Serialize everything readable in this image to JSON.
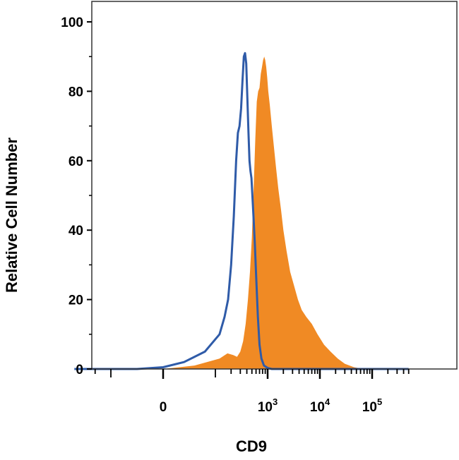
{
  "chart_data": {
    "type": "area",
    "title": "",
    "xlabel": "CD9",
    "ylabel": "Relative Cell Number",
    "x_scale": "biexponential",
    "ylim": [
      0,
      100
    ],
    "xlim": [
      -500,
      500000
    ],
    "y_ticks": [
      {
        "value": 0,
        "label": "0"
      },
      {
        "value": 20,
        "label": "20"
      },
      {
        "value": 40,
        "label": "40"
      },
      {
        "value": 60,
        "label": "60"
      },
      {
        "value": 80,
        "label": "80"
      },
      {
        "value": 100,
        "label": "100"
      }
    ],
    "x_ticks": [
      {
        "value": 0,
        "base": "0",
        "exp": ""
      },
      {
        "value": 1000,
        "base": "10",
        "exp": "3"
      },
      {
        "value": 10000,
        "base": "10",
        "exp": "4"
      },
      {
        "value": 100000,
        "base": "10",
        "exp": "5"
      }
    ],
    "grid": false,
    "series": [
      {
        "color": "#f08a24",
        "style": "filled",
        "points": [
          [
            -50,
            0
          ],
          [
            0,
            0
          ],
          [
            60,
            1
          ],
          [
            120,
            3
          ],
          [
            170,
            4.5
          ],
          [
            220,
            4
          ],
          [
            260,
            3.5
          ],
          [
            300,
            5
          ],
          [
            340,
            8
          ],
          [
            380,
            13
          ],
          [
            420,
            20
          ],
          [
            460,
            28
          ],
          [
            500,
            38
          ],
          [
            540,
            52
          ],
          [
            580,
            66
          ],
          [
            620,
            77
          ],
          [
            660,
            80
          ],
          [
            700,
            81
          ],
          [
            740,
            85
          ],
          [
            780,
            87
          ],
          [
            820,
            89
          ],
          [
            860,
            90
          ],
          [
            900,
            89
          ],
          [
            940,
            87
          ],
          [
            980,
            84
          ],
          [
            1030,
            80
          ],
          [
            1100,
            76
          ],
          [
            1200,
            70
          ],
          [
            1300,
            65
          ],
          [
            1450,
            58
          ],
          [
            1600,
            52
          ],
          [
            1800,
            46
          ],
          [
            2000,
            40
          ],
          [
            2300,
            34
          ],
          [
            2700,
            28
          ],
          [
            3200,
            24
          ],
          [
            3800,
            20
          ],
          [
            4500,
            17
          ],
          [
            5500,
            15
          ],
          [
            7000,
            13
          ],
          [
            9000,
            10
          ],
          [
            12000,
            7
          ],
          [
            16000,
            5
          ],
          [
            22000,
            3
          ],
          [
            30000,
            1.5
          ],
          [
            45000,
            0.5
          ],
          [
            70000,
            0
          ]
        ]
      },
      {
        "color": "#2f5ba8",
        "style": "line",
        "points": [
          [
            -500,
            0
          ],
          [
            -150,
            0
          ],
          [
            -50,
            0
          ],
          [
            0,
            0.5
          ],
          [
            40,
            2
          ],
          [
            80,
            5
          ],
          [
            120,
            10
          ],
          [
            150,
            15
          ],
          [
            175,
            20
          ],
          [
            200,
            30
          ],
          [
            225,
            44
          ],
          [
            250,
            60
          ],
          [
            270,
            68
          ],
          [
            290,
            70
          ],
          [
            310,
            75
          ],
          [
            330,
            83
          ],
          [
            350,
            90
          ],
          [
            370,
            91
          ],
          [
            390,
            88
          ],
          [
            410,
            78
          ],
          [
            430,
            68
          ],
          [
            450,
            60
          ],
          [
            470,
            57
          ],
          [
            490,
            55
          ],
          [
            510,
            50
          ],
          [
            540,
            43
          ],
          [
            570,
            36
          ],
          [
            610,
            25
          ],
          [
            650,
            15
          ],
          [
            700,
            7
          ],
          [
            760,
            3
          ],
          [
            850,
            1
          ],
          [
            1000,
            0.3
          ],
          [
            1200,
            0
          ],
          [
            500000,
            0
          ]
        ]
      }
    ]
  }
}
